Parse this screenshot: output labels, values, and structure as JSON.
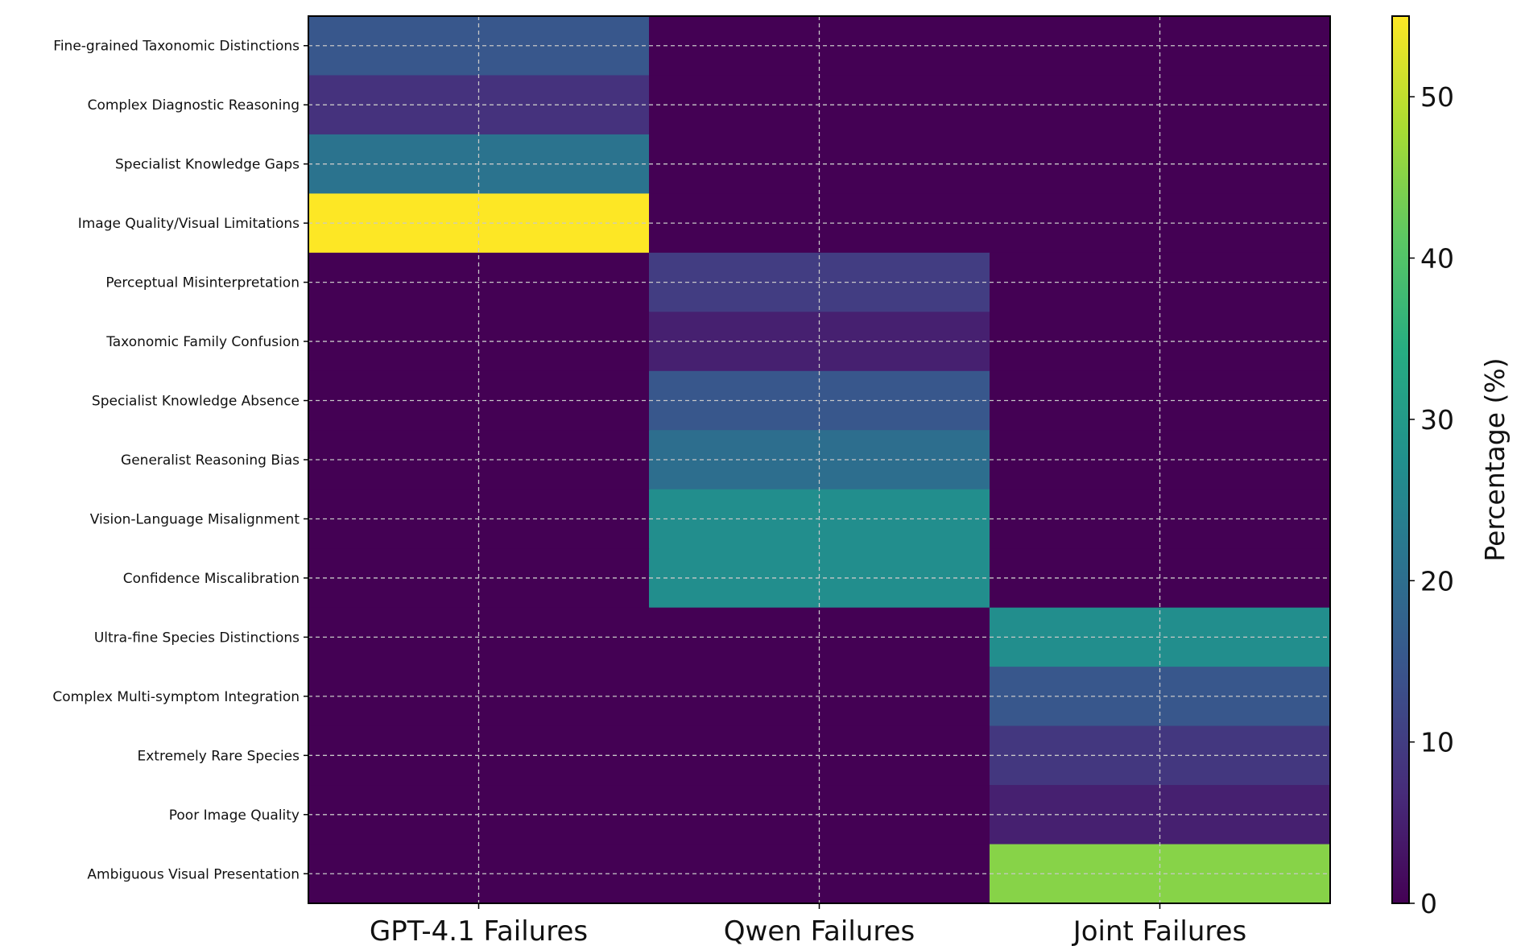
{
  "chart_data": {
    "type": "heatmap",
    "columns": [
      "GPT-4.1 Failures",
      "Qwen Failures",
      "Joint Failures"
    ],
    "rows": [
      "Fine-grained Taxonomic Distinctions",
      "Complex Diagnostic Reasoning",
      "Specialist Knowledge Gaps",
      "Image Quality/Visual Limitations",
      "Perceptual Misinterpretation",
      "Taxonomic Family Confusion",
      "Specialist Knowledge Absence",
      "Generalist Reasoning Bias",
      "Vision-Language Misalignment",
      "Confidence Miscalibration",
      "Ultra-fine Species Distinctions",
      "Complex Multi-symptom Integration",
      "Extremely Rare Species",
      "Poor Image Quality",
      "Ambiguous Visual Presentation"
    ],
    "values": [
      [
        15,
        0,
        0
      ],
      [
        8,
        0,
        0
      ],
      [
        21,
        0,
        0
      ],
      [
        55,
        0,
        0
      ],
      [
        0,
        10,
        0
      ],
      [
        0,
        5,
        0
      ],
      [
        0,
        15,
        0
      ],
      [
        0,
        20,
        0
      ],
      [
        0,
        27,
        0
      ],
      [
        0,
        27,
        0
      ],
      [
        0,
        0,
        27
      ],
      [
        0,
        0,
        15
      ],
      [
        0,
        0,
        9
      ],
      [
        0,
        0,
        5
      ],
      [
        0,
        0,
        45
      ]
    ],
    "colorbar": {
      "label": "Percentage (%)",
      "range": [
        0,
        55
      ],
      "ticks": [
        0,
        10,
        20,
        30,
        40,
        50
      ],
      "colormap": "viridis"
    },
    "grid": true
  }
}
